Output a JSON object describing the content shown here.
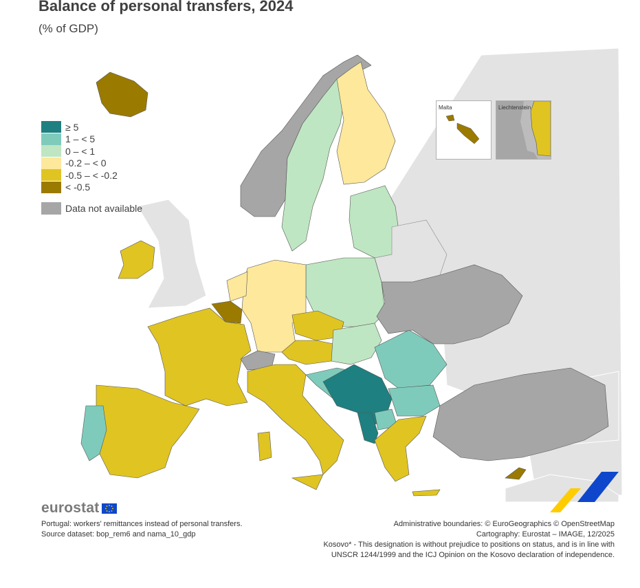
{
  "title": "Balance of personal transfers, 2024",
  "subtitle": "(% of GDP)",
  "legend": {
    "items": [
      {
        "label": "≥ 5",
        "color": "#1e8080"
      },
      {
        "label": "1 – < 5",
        "color": "#7fcbbb"
      },
      {
        "label": "0 – < 1",
        "color": "#bfe6c2"
      },
      {
        "label": "-0.2 – < 0",
        "color": "#fde89c"
      },
      {
        "label": "-0.5 – < -0.2",
        "color": "#e0c422"
      },
      {
        "label": "< -0.5",
        "color": "#9b7a00"
      }
    ],
    "na_label": "Data not available",
    "na_color": "#a6a6a6"
  },
  "insets": {
    "malta": "Malta",
    "liechtenstein": "Liechtenstein"
  },
  "brand": "eurostat",
  "footer": {
    "note": "Portugal: workers' remittances instead of personal transfers.",
    "source": "Source dataset: bop_rem6 and nama_10_gdp",
    "boundaries": "Administrative boundaries: © EuroGeographics © OpenStreetMap",
    "cartography": "Cartography: Eurostat – IMAGE, 12/2025",
    "kosovo_1": "Kosovo* - This designation is without prejudice to positions on status, and is in line with",
    "kosovo_2": "UNSCR 1244/1999 and the ICJ Opinion on the Kosovo declaration of independence."
  }
}
